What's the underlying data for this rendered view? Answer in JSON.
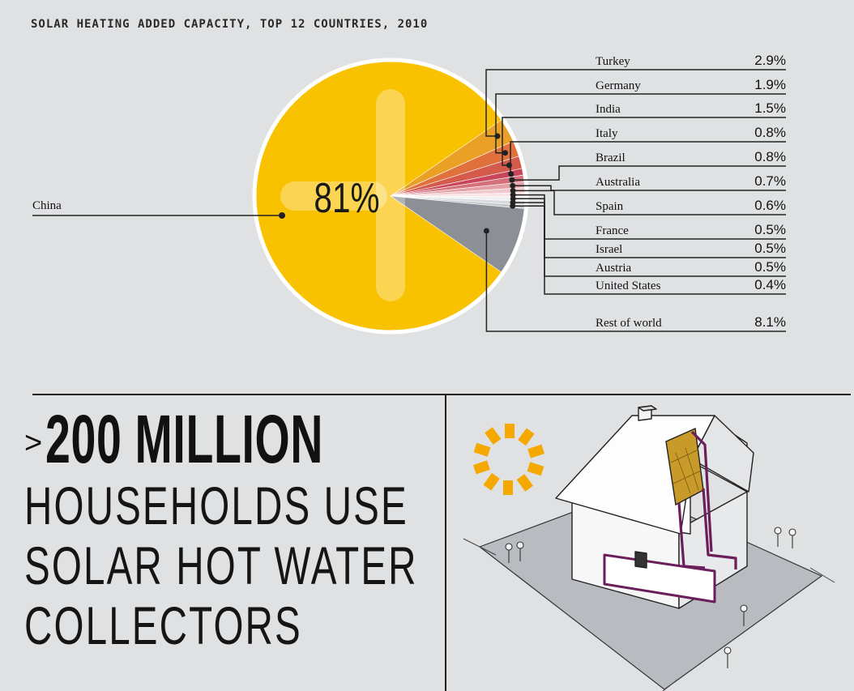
{
  "chart_data": {
    "type": "pie",
    "title": "SOLAR HEATING ADDED CAPACITY, TOP 12 COUNTRIES, 2010",
    "slices": [
      {
        "label": "China",
        "value": 81,
        "value_label": "",
        "color": "#f9c200"
      },
      {
        "label": "Turkey",
        "value": 2.9,
        "value_label": "2.9%",
        "color": "#eaa024"
      },
      {
        "label": "Germany",
        "value": 1.9,
        "value_label": "1.9%",
        "color": "#e0703c"
      },
      {
        "label": "India",
        "value": 1.5,
        "value_label": "1.5%",
        "color": "#d45a4c"
      },
      {
        "label": "Italy",
        "value": 0.8,
        "value_label": "0.8%",
        "color": "#c8455a"
      },
      {
        "label": "Brazil",
        "value": 0.8,
        "value_label": "0.8%",
        "color": "#d4707a"
      },
      {
        "label": "Australia",
        "value": 0.7,
        "value_label": "0.7%",
        "color": "#e4a0a6"
      },
      {
        "label": "Spain",
        "value": 0.6,
        "value_label": "0.6%",
        "color": "#f0c8cc"
      },
      {
        "label": "France",
        "value": 0.5,
        "value_label": "0.5%",
        "color": "#fbe2e4"
      },
      {
        "label": "Israel",
        "value": 0.5,
        "value_label": "0.5%",
        "color": "#eef0f2"
      },
      {
        "label": "Austria",
        "value": 0.5,
        "value_label": "0.5%",
        "color": "#d8dadd"
      },
      {
        "label": "United States",
        "value": 0.4,
        "value_label": "0.4%",
        "color": "#c2c5c9"
      },
      {
        "label": "Rest of world",
        "value": 8.1,
        "value_label": "8.1%",
        "color": "#8c9096"
      }
    ],
    "center_label": "81%"
  },
  "headline": {
    "prefix": ">",
    "big": "200 MILLION",
    "lines": [
      "HOUSEHOLDS USE",
      "SOLAR HOT WATER",
      "COLLECTORS"
    ]
  },
  "colors": {
    "background": "#dfe1e3",
    "china": "#f9c200",
    "sun": "#f5a800",
    "pipe": "#6a1e5a",
    "panel": "#c89a2a"
  },
  "illustration": {
    "subject": "house-with-rooftop-solar-collector",
    "icons": [
      "sun-icon",
      "solar-panel-icon",
      "house-icon"
    ]
  }
}
